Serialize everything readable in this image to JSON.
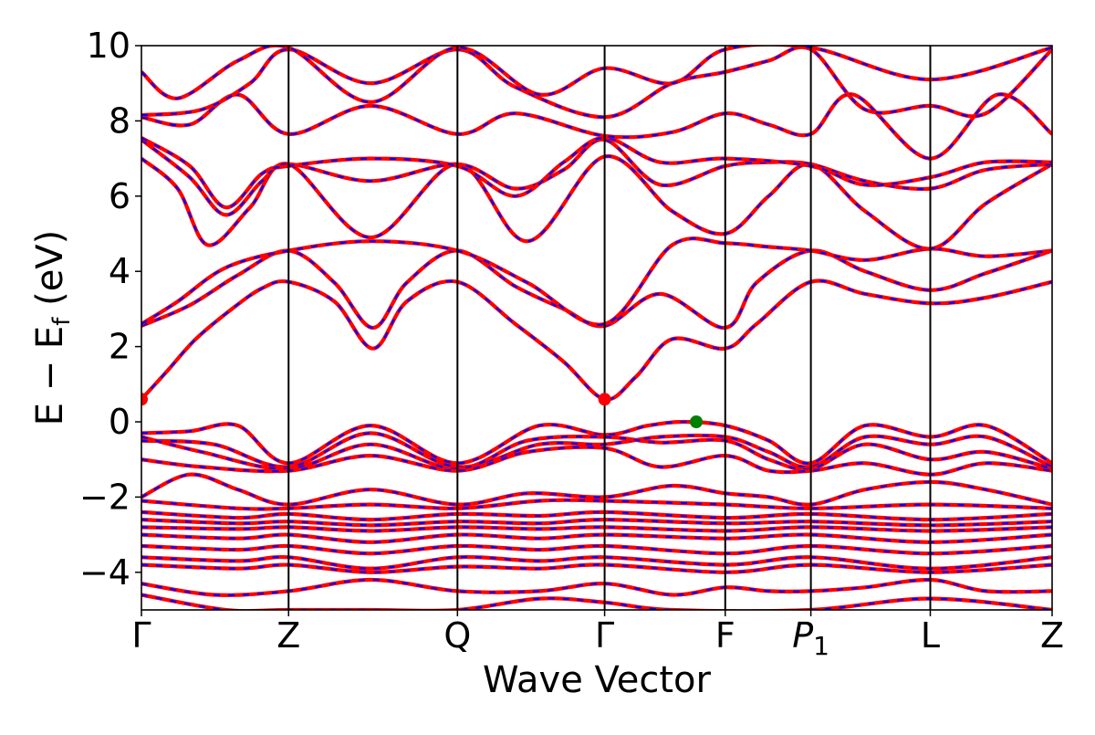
{
  "chart_data": {
    "type": "line",
    "title": "",
    "xlabel": "Wave Vector",
    "ylabel": "E − E_f (eV)",
    "ylabel_parts": {
      "main": "E − E",
      "sub": "f",
      "unit": " (eV)"
    },
    "ylim": [
      -5,
      10
    ],
    "yticks": [
      10,
      8,
      6,
      4,
      2,
      0,
      -2,
      -4
    ],
    "ytick_labels": [
      "10",
      "8",
      "6",
      "4",
      "2",
      "0",
      "−2",
      "−4"
    ],
    "xlim": [
      0,
      7.55
    ],
    "high_symmetry_points": [
      {
        "label": "Γ",
        "sub": "",
        "k": 0.0
      },
      {
        "label": "Z",
        "sub": "",
        "k": 1.22
      },
      {
        "label": "Q",
        "sub": "",
        "k": 2.62
      },
      {
        "label": "Γ",
        "sub": "",
        "k": 3.84
      },
      {
        "label": "F",
        "sub": "",
        "k": 4.84
      },
      {
        "label": "P",
        "sub": "1",
        "k": 5.55
      },
      {
        "label": "L",
        "sub": "",
        "k": 6.54
      },
      {
        "label": "Z",
        "sub": "",
        "k": 7.55
      }
    ],
    "series": [
      {
        "style": "solid",
        "color": "#ff0000"
      },
      {
        "style": "dashed",
        "color": "#0000ff"
      }
    ],
    "bands": [
      [
        [
          0.0,
          0.6
        ],
        [
          0.2,
          1.3
        ],
        [
          0.45,
          2.2
        ],
        [
          0.75,
          3.0
        ],
        [
          1.0,
          3.55
        ],
        [
          1.22,
          3.72
        ],
        [
          1.6,
          3.2
        ],
        [
          1.92,
          1.95
        ],
        [
          2.2,
          3.2
        ],
        [
          2.62,
          3.72
        ],
        [
          3.1,
          2.6
        ],
        [
          3.5,
          1.6
        ],
        [
          3.84,
          0.6
        ],
        [
          4.1,
          1.2
        ],
        [
          4.4,
          2.2
        ],
        [
          4.84,
          1.95
        ],
        [
          5.1,
          2.6
        ],
        [
          5.55,
          3.72
        ],
        [
          6.0,
          3.4
        ],
        [
          6.54,
          3.15
        ],
        [
          7.0,
          3.3
        ],
        [
          7.55,
          3.72
        ]
      ],
      [
        [
          0.0,
          2.55
        ],
        [
          0.4,
          3.1
        ],
        [
          0.8,
          3.9
        ],
        [
          1.22,
          4.55
        ],
        [
          1.6,
          3.7
        ],
        [
          1.92,
          2.5
        ],
        [
          2.2,
          3.7
        ],
        [
          2.62,
          4.55
        ],
        [
          3.1,
          3.6
        ],
        [
          3.5,
          3.0
        ],
        [
          3.84,
          2.55
        ],
        [
          4.3,
          3.4
        ],
        [
          4.84,
          2.5
        ],
        [
          5.1,
          3.7
        ],
        [
          5.55,
          4.55
        ],
        [
          6.0,
          4.0
        ],
        [
          6.54,
          3.5
        ],
        [
          7.0,
          3.95
        ],
        [
          7.55,
          4.55
        ]
      ],
      [
        [
          0.0,
          2.6
        ],
        [
          0.3,
          3.2
        ],
        [
          0.7,
          4.1
        ],
        [
          1.22,
          4.55
        ],
        [
          1.9,
          4.8
        ],
        [
          2.62,
          4.55
        ],
        [
          3.2,
          3.7
        ],
        [
          3.84,
          2.6
        ],
        [
          4.4,
          4.7
        ],
        [
          4.84,
          4.75
        ],
        [
          5.2,
          4.65
        ],
        [
          5.55,
          4.55
        ],
        [
          6.0,
          4.3
        ],
        [
          6.54,
          4.6
        ],
        [
          7.0,
          4.4
        ],
        [
          7.55,
          4.55
        ]
      ],
      [
        [
          0.0,
          7.0
        ],
        [
          0.3,
          6.2
        ],
        [
          0.55,
          4.7
        ],
        [
          0.9,
          5.7
        ],
        [
          1.22,
          6.85
        ],
        [
          1.9,
          4.9
        ],
        [
          2.62,
          6.85
        ],
        [
          3.2,
          4.8
        ],
        [
          3.84,
          7.05
        ],
        [
          4.4,
          5.6
        ],
        [
          4.84,
          5.0
        ],
        [
          5.2,
          6.0
        ],
        [
          5.55,
          6.85
        ],
        [
          6.0,
          5.6
        ],
        [
          6.54,
          4.6
        ],
        [
          7.0,
          5.8
        ],
        [
          7.55,
          6.85
        ]
      ],
      [
        [
          0.0,
          7.5
        ],
        [
          0.4,
          6.5
        ],
        [
          0.7,
          5.5
        ],
        [
          1.0,
          6.4
        ],
        [
          1.22,
          6.85
        ],
        [
          1.9,
          6.4
        ],
        [
          2.62,
          6.85
        ],
        [
          3.1,
          6.2
        ],
        [
          3.5,
          6.7
        ],
        [
          3.84,
          7.5
        ],
        [
          4.3,
          6.3
        ],
        [
          4.84,
          6.8
        ],
        [
          5.2,
          6.9
        ],
        [
          5.55,
          6.85
        ],
        [
          6.0,
          6.4
        ],
        [
          6.54,
          6.2
        ],
        [
          7.0,
          6.7
        ],
        [
          7.55,
          6.85
        ]
      ],
      [
        [
          0.0,
          7.55
        ],
        [
          0.4,
          6.8
        ],
        [
          0.7,
          5.7
        ],
        [
          1.0,
          6.6
        ],
        [
          1.22,
          6.8
        ],
        [
          1.9,
          7.0
        ],
        [
          2.62,
          6.8
        ],
        [
          3.1,
          6.0
        ],
        [
          3.5,
          6.9
        ],
        [
          3.84,
          7.55
        ],
        [
          4.3,
          6.9
        ],
        [
          4.84,
          7.0
        ],
        [
          5.55,
          6.8
        ],
        [
          6.0,
          6.3
        ],
        [
          6.54,
          6.5
        ],
        [
          7.0,
          6.9
        ],
        [
          7.55,
          6.9
        ]
      ],
      [
        [
          0.0,
          8.1
        ],
        [
          0.4,
          7.9
        ],
        [
          0.8,
          8.7
        ],
        [
          1.22,
          7.65
        ],
        [
          1.9,
          8.4
        ],
        [
          2.62,
          7.65
        ],
        [
          3.1,
          8.2
        ],
        [
          3.84,
          7.6
        ],
        [
          4.4,
          7.7
        ],
        [
          4.84,
          8.2
        ],
        [
          5.2,
          7.9
        ],
        [
          5.55,
          7.65
        ],
        [
          5.9,
          8.7
        ],
        [
          6.54,
          7.0
        ],
        [
          7.1,
          8.7
        ],
        [
          7.55,
          7.65
        ]
      ],
      [
        [
          0.0,
          8.15
        ],
        [
          0.5,
          8.3
        ],
        [
          0.9,
          9.0
        ],
        [
          1.22,
          9.9
        ],
        [
          1.9,
          9.0
        ],
        [
          2.62,
          9.9
        ],
        [
          3.1,
          8.9
        ],
        [
          3.84,
          8.1
        ],
        [
          4.4,
          9.0
        ],
        [
          4.84,
          9.3
        ],
        [
          5.2,
          9.6
        ],
        [
          5.55,
          9.9
        ],
        [
          6.0,
          8.3
        ],
        [
          6.54,
          8.4
        ],
        [
          7.0,
          8.2
        ],
        [
          7.55,
          9.9
        ]
      ],
      [
        [
          0.0,
          9.3
        ],
        [
          0.3,
          8.6
        ],
        [
          0.8,
          9.6
        ],
        [
          1.22,
          9.95
        ],
        [
          1.9,
          8.5
        ],
        [
          2.62,
          9.95
        ],
        [
          3.3,
          8.7
        ],
        [
          3.84,
          9.4
        ],
        [
          4.4,
          9.0
        ],
        [
          4.84,
          9.9
        ],
        [
          5.55,
          9.95
        ],
        [
          6.54,
          9.1
        ],
        [
          7.55,
          9.95
        ]
      ],
      [
        [
          0.0,
          -0.3
        ],
        [
          0.4,
          -0.25
        ],
        [
          0.8,
          -0.1
        ],
        [
          1.22,
          -1.1
        ],
        [
          1.9,
          -0.1
        ],
        [
          2.62,
          -1.1
        ],
        [
          3.3,
          -0.1
        ],
        [
          3.84,
          -0.35
        ],
        [
          4.2,
          -0.1
        ],
        [
          4.5,
          0.0
        ],
        [
          4.84,
          -0.1
        ],
        [
          5.2,
          -0.5
        ],
        [
          5.55,
          -1.1
        ],
        [
          6.0,
          -0.1
        ],
        [
          6.54,
          -0.4
        ],
        [
          7.0,
          -0.1
        ],
        [
          7.55,
          -1.1
        ]
      ],
      [
        [
          0.0,
          -0.5
        ],
        [
          0.6,
          -0.6
        ],
        [
          1.22,
          -1.2
        ],
        [
          1.9,
          -0.3
        ],
        [
          2.62,
          -1.2
        ],
        [
          3.3,
          -0.6
        ],
        [
          3.84,
          -0.6
        ],
        [
          4.3,
          -0.4
        ],
        [
          4.84,
          -0.4
        ],
        [
          5.2,
          -0.8
        ],
        [
          5.55,
          -1.2
        ],
        [
          6.0,
          -0.4
        ],
        [
          6.54,
          -0.6
        ],
        [
          7.0,
          -0.4
        ],
        [
          7.55,
          -1.2
        ]
      ],
      [
        [
          0.0,
          -0.4
        ],
        [
          0.5,
          -0.8
        ],
        [
          1.22,
          -1.25
        ],
        [
          1.9,
          -0.6
        ],
        [
          2.62,
          -1.25
        ],
        [
          3.2,
          -0.5
        ],
        [
          3.84,
          -0.4
        ],
        [
          4.3,
          -0.55
        ],
        [
          4.84,
          -0.5
        ],
        [
          5.2,
          -1.0
        ],
        [
          5.55,
          -1.25
        ],
        [
          6.0,
          -0.6
        ],
        [
          6.54,
          -1.0
        ],
        [
          7.0,
          -0.8
        ],
        [
          7.55,
          -1.25
        ]
      ],
      [
        [
          0.0,
          -1.0
        ],
        [
          0.5,
          -1.2
        ],
        [
          1.22,
          -1.3
        ],
        [
          1.9,
          -0.9
        ],
        [
          2.62,
          -1.3
        ],
        [
          3.2,
          -0.8
        ],
        [
          3.84,
          -0.7
        ],
        [
          4.3,
          -1.2
        ],
        [
          4.84,
          -0.9
        ],
        [
          5.2,
          -1.3
        ],
        [
          5.55,
          -1.3
        ],
        [
          6.0,
          -1.1
        ],
        [
          6.54,
          -1.4
        ],
        [
          7.0,
          -1.1
        ],
        [
          7.55,
          -1.3
        ]
      ],
      [
        [
          0.0,
          -2.0
        ],
        [
          0.4,
          -1.4
        ],
        [
          0.8,
          -1.8
        ],
        [
          1.22,
          -2.2
        ],
        [
          1.9,
          -1.8
        ],
        [
          2.62,
          -2.2
        ],
        [
          3.2,
          -1.9
        ],
        [
          3.84,
          -2.0
        ],
        [
          4.4,
          -1.7
        ],
        [
          4.84,
          -1.9
        ],
        [
          5.2,
          -2.0
        ],
        [
          5.55,
          -2.2
        ],
        [
          6.0,
          -1.8
        ],
        [
          6.54,
          -1.6
        ],
        [
          7.0,
          -1.8
        ],
        [
          7.55,
          -2.2
        ]
      ],
      [
        [
          0.0,
          -2.1
        ],
        [
          0.8,
          -2.3
        ],
        [
          1.22,
          -2.3
        ],
        [
          1.9,
          -2.2
        ],
        [
          2.62,
          -2.3
        ],
        [
          3.3,
          -2.1
        ],
        [
          3.84,
          -2.1
        ],
        [
          4.84,
          -2.2
        ],
        [
          5.55,
          -2.3
        ],
        [
          6.54,
          -2.2
        ],
        [
          7.55,
          -2.3
        ]
      ],
      [
        [
          0.0,
          -2.4
        ],
        [
          0.8,
          -2.55
        ],
        [
          1.22,
          -2.45
        ],
        [
          1.9,
          -2.6
        ],
        [
          2.62,
          -2.45
        ],
        [
          3.3,
          -2.5
        ],
        [
          3.84,
          -2.4
        ],
        [
          4.84,
          -2.55
        ],
        [
          5.55,
          -2.45
        ],
        [
          6.54,
          -2.6
        ],
        [
          7.55,
          -2.45
        ]
      ],
      [
        [
          0.0,
          -2.6
        ],
        [
          0.8,
          -2.7
        ],
        [
          1.22,
          -2.65
        ],
        [
          1.9,
          -2.75
        ],
        [
          2.62,
          -2.65
        ],
        [
          3.3,
          -2.7
        ],
        [
          3.84,
          -2.6
        ],
        [
          4.84,
          -2.7
        ],
        [
          5.55,
          -2.65
        ],
        [
          6.54,
          -2.75
        ],
        [
          7.55,
          -2.65
        ]
      ],
      [
        [
          0.0,
          -2.8
        ],
        [
          0.8,
          -2.85
        ],
        [
          1.22,
          -2.8
        ],
        [
          1.9,
          -2.9
        ],
        [
          2.62,
          -2.8
        ],
        [
          3.3,
          -2.85
        ],
        [
          3.84,
          -2.8
        ],
        [
          4.84,
          -2.9
        ],
        [
          5.55,
          -2.8
        ],
        [
          6.54,
          -2.9
        ],
        [
          7.55,
          -2.8
        ]
      ],
      [
        [
          0.0,
          -3.0
        ],
        [
          0.8,
          -3.1
        ],
        [
          1.22,
          -3.0
        ],
        [
          1.9,
          -3.2
        ],
        [
          2.62,
          -3.0
        ],
        [
          3.3,
          -3.1
        ],
        [
          3.84,
          -3.0
        ],
        [
          4.84,
          -3.1
        ],
        [
          5.55,
          -3.0
        ],
        [
          6.54,
          -3.2
        ],
        [
          7.55,
          -3.0
        ]
      ],
      [
        [
          0.0,
          -3.3
        ],
        [
          0.8,
          -3.4
        ],
        [
          1.22,
          -3.3
        ],
        [
          1.9,
          -3.5
        ],
        [
          2.62,
          -3.3
        ],
        [
          3.3,
          -3.4
        ],
        [
          3.84,
          -3.3
        ],
        [
          4.84,
          -3.5
        ],
        [
          5.55,
          -3.3
        ],
        [
          6.54,
          -3.5
        ],
        [
          7.55,
          -3.3
        ]
      ],
      [
        [
          0.0,
          -3.6
        ],
        [
          0.8,
          -3.7
        ],
        [
          1.22,
          -3.6
        ],
        [
          1.9,
          -3.9
        ],
        [
          2.62,
          -3.6
        ],
        [
          3.3,
          -3.7
        ],
        [
          3.84,
          -3.6
        ],
        [
          4.84,
          -3.8
        ],
        [
          5.55,
          -3.6
        ],
        [
          6.54,
          -3.9
        ],
        [
          7.55,
          -3.6
        ]
      ],
      [
        [
          0.0,
          -3.8
        ],
        [
          0.8,
          -3.9
        ],
        [
          1.22,
          -3.8
        ],
        [
          1.9,
          -4.0
        ],
        [
          2.62,
          -3.85
        ],
        [
          3.3,
          -3.9
        ],
        [
          3.84,
          -3.8
        ],
        [
          4.84,
          -4.0
        ],
        [
          5.55,
          -3.8
        ],
        [
          6.54,
          -4.0
        ],
        [
          7.55,
          -3.8
        ]
      ],
      [
        [
          0.0,
          -4.3
        ],
        [
          0.6,
          -4.6
        ],
        [
          1.22,
          -4.5
        ],
        [
          1.9,
          -4.2
        ],
        [
          2.62,
          -4.5
        ],
        [
          3.3,
          -4.5
        ],
        [
          3.84,
          -4.3
        ],
        [
          4.4,
          -4.6
        ],
        [
          4.84,
          -4.4
        ],
        [
          5.2,
          -4.5
        ],
        [
          5.55,
          -4.5
        ],
        [
          6.0,
          -4.4
        ],
        [
          6.54,
          -4.2
        ],
        [
          7.0,
          -4.5
        ],
        [
          7.55,
          -4.5
        ]
      ],
      [
        [
          0.0,
          -4.6
        ],
        [
          0.7,
          -5.0
        ],
        [
          1.22,
          -5.0
        ],
        [
          1.9,
          -5.0
        ],
        [
          2.62,
          -5.0
        ],
        [
          3.3,
          -4.7
        ],
        [
          3.84,
          -4.8
        ],
        [
          4.4,
          -5.0
        ],
        [
          5.55,
          -5.0
        ],
        [
          6.54,
          -4.7
        ],
        [
          7.55,
          -5.0
        ]
      ]
    ],
    "markers": [
      {
        "k": 0.0,
        "e": 0.6,
        "color": "#ff0000"
      },
      {
        "k": 3.84,
        "e": 0.6,
        "color": "#ff0000"
      },
      {
        "k": 4.6,
        "e": 0.0,
        "color": "#008000"
      }
    ]
  }
}
